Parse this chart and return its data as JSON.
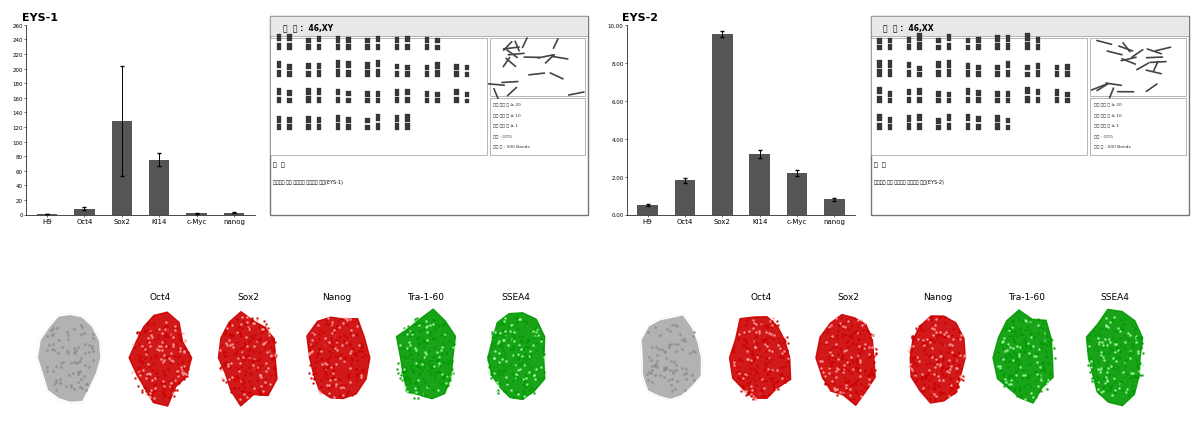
{
  "title_left": "EYS-1",
  "title_right": "EYS-2",
  "bar_categories": [
    "H9",
    "Oct4",
    "Sox2",
    "Ki14",
    "c-Myc",
    "nanog"
  ],
  "bar_values_left": [
    1.0,
    8.0,
    128.0,
    75.0,
    1.5,
    2.5
  ],
  "bar_errors_left": [
    0.3,
    2.0,
    75.0,
    9.0,
    0.4,
    0.6
  ],
  "bar_values_right": [
    0.5,
    1.8,
    9.5,
    3.2,
    2.2,
    0.8
  ],
  "bar_errors_right": [
    0.05,
    0.15,
    0.15,
    0.2,
    0.15,
    0.08
  ],
  "bar_color": "#555555",
  "ylim_left": [
    0,
    260
  ],
  "ylim_right": [
    0,
    10.0
  ],
  "icc_labels": [
    "Oct4",
    "Sox2",
    "Nanog",
    "Tra-1-60",
    "SSEA4"
  ],
  "karyotype_title_left": "결  과 :  46,XY",
  "karyotype_title_right": "결  과 :  46,XX",
  "caption_left": "그  림",
  "caption_sub_left": "환자세포 유래 줄기세포 핵형분석 결과(EYS-1)",
  "caption_right": "그  림",
  "caption_sub_right": "환자세포 유래 줄기세포 핵형분석 결과(EYS-2)",
  "side_texts": [
    "분석 세포 수 ≥ 20",
    "분석 세포 수 ≥ 10",
    "핵형 이상 수 ≥ 1",
    "방법 : GTG",
    "분석 수 : 500 Bands"
  ]
}
